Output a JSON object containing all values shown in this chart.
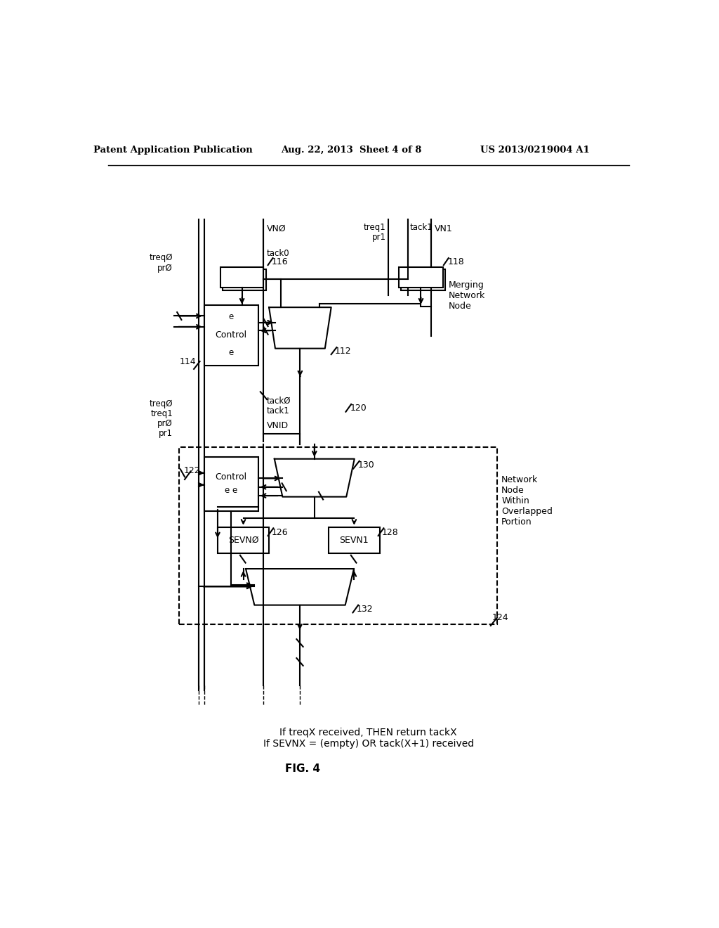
{
  "bg_color": "#ffffff",
  "header_left": "Patent Application Publication",
  "header_mid": "Aug. 22, 2013  Sheet 4 of 8",
  "header_right": "US 2013/0219004 A1",
  "fig_label": "FIG. 4",
  "caption_line1": "If treqX received, THEN return tackX",
  "caption_line2": "If SEVNX = (empty) OR tack(X+1) received",
  "label_vn0": "VNØ",
  "label_vn1": "VN1",
  "label_treq0": "treqØ",
  "label_pr0": "prØ",
  "label_treq1": "treq1",
  "label_pr1": "pr1",
  "label_tack0": "tack0",
  "label_tack1": "tack1",
  "label_tack0b": "tackØ",
  "label_treq0b": "treqØ",
  "label_treq1b": "treq1",
  "label_pr0b": "prØ",
  "label_pr1b": "pr1",
  "label_vnid": "VNID",
  "label_sevn0": "SEVNØ",
  "label_sevn1": "SEVN1",
  "label_control": "Control",
  "label_e": "e",
  "label_ee": "e e",
  "label_merging": "Merging\nNetwork\nNode",
  "label_network": "Network\nNode\nWithin\nOverlapped\nPortion"
}
